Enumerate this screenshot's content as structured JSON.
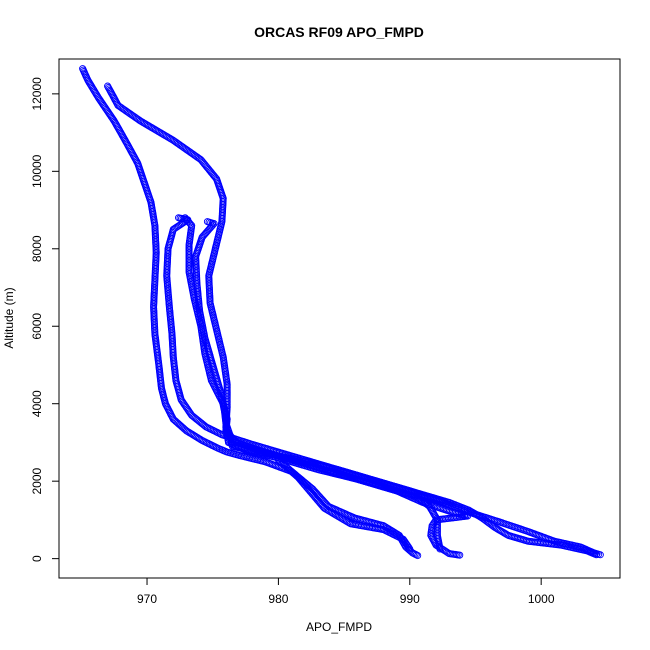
{
  "chart_data": {
    "type": "scatter",
    "title": "ORCAS RF09 APO_FMPD",
    "xlabel": "APO_FMPD",
    "ylabel": "Altitude (m)",
    "xlim": [
      963.3,
      1006.0
    ],
    "ylim": [
      -500,
      12900
    ],
    "xticks": [
      970,
      980,
      990,
      1000
    ],
    "yticks": [
      0,
      2000,
      4000,
      6000,
      8000,
      10000,
      12000
    ],
    "grid": false,
    "legend": "none",
    "marker": "open-circle",
    "color": "#0000ff",
    "series": [
      {
        "points": [
          [
            965.1,
            12650
          ],
          [
            965.5,
            12350
          ],
          [
            966.3,
            11900
          ],
          [
            967.5,
            11300
          ],
          [
            968.5,
            10700
          ],
          [
            969.3,
            10200
          ],
          [
            969.8,
            9700
          ],
          [
            970.3,
            9200
          ],
          [
            970.6,
            8600
          ],
          [
            970.7,
            7900
          ],
          [
            970.6,
            7200
          ],
          [
            970.5,
            6500
          ],
          [
            970.6,
            5800
          ],
          [
            970.9,
            5000
          ],
          [
            971.1,
            4400
          ],
          [
            971.4,
            4000
          ],
          [
            972.0,
            3600
          ],
          [
            973.0,
            3300
          ],
          [
            974.2,
            3050
          ],
          [
            975.4,
            2850
          ],
          [
            976.1,
            2750
          ],
          [
            977.2,
            2650
          ],
          [
            979.0,
            2500
          ],
          [
            981.0,
            2250
          ],
          [
            982.6,
            1800
          ],
          [
            983.8,
            1350
          ],
          [
            985.8,
            1050
          ],
          [
            988.0,
            850
          ],
          [
            989.2,
            600
          ],
          [
            989.7,
            300
          ],
          [
            990.2,
            150
          ],
          [
            990.6,
            80
          ]
        ]
      },
      {
        "points": [
          [
            967.0,
            12200
          ],
          [
            967.8,
            11700
          ],
          [
            969.5,
            11300
          ],
          [
            972.0,
            10800
          ],
          [
            974.1,
            10300
          ],
          [
            975.3,
            9800
          ],
          [
            975.8,
            9300
          ],
          [
            975.7,
            8700
          ],
          [
            975.2,
            8000
          ],
          [
            974.7,
            7300
          ],
          [
            974.8,
            6600
          ],
          [
            975.3,
            5900
          ],
          [
            975.8,
            5200
          ],
          [
            976.1,
            4500
          ],
          [
            976.1,
            3900
          ],
          [
            976.0,
            3400
          ],
          [
            976.2,
            3000
          ],
          [
            977.5,
            2800
          ],
          [
            980.0,
            2600
          ],
          [
            983.0,
            2300
          ],
          [
            986.0,
            2050
          ],
          [
            989.0,
            1750
          ],
          [
            991.0,
            1450
          ],
          [
            992.8,
            1250
          ],
          [
            993.8,
            1150
          ],
          [
            994.4,
            1100
          ],
          [
            992.0,
            1000
          ],
          [
            991.7,
            850
          ],
          [
            991.6,
            600
          ],
          [
            992.0,
            350
          ],
          [
            993.0,
            130
          ],
          [
            993.8,
            90
          ]
        ]
      },
      {
        "points": [
          [
            972.4,
            8800
          ],
          [
            973.1,
            8750
          ],
          [
            972.0,
            8500
          ],
          [
            971.6,
            8000
          ],
          [
            971.5,
            7300
          ],
          [
            971.7,
            6500
          ],
          [
            971.9,
            5800
          ],
          [
            972.0,
            5200
          ],
          [
            972.2,
            4600
          ],
          [
            972.6,
            4100
          ],
          [
            973.4,
            3700
          ],
          [
            974.5,
            3400
          ],
          [
            975.7,
            3200
          ],
          [
            978.0,
            2950
          ],
          [
            981.0,
            2650
          ],
          [
            984.0,
            2350
          ],
          [
            987.0,
            2050
          ],
          [
            990.0,
            1750
          ],
          [
            992.6,
            1450
          ],
          [
            994.5,
            1200
          ],
          [
            996.8,
            950
          ],
          [
            999.0,
            700
          ],
          [
            1001.0,
            450
          ],
          [
            1003.0,
            300
          ],
          [
            1004.0,
            150
          ],
          [
            1004.5,
            100
          ]
        ]
      },
      {
        "points": [
          [
            972.9,
            8800
          ],
          [
            973.4,
            8600
          ],
          [
            973.2,
            8100
          ],
          [
            973.2,
            7400
          ],
          [
            973.6,
            6700
          ],
          [
            974.1,
            6000
          ],
          [
            974.4,
            5300
          ],
          [
            974.9,
            4600
          ],
          [
            975.8,
            4000
          ],
          [
            976.1,
            3600
          ],
          [
            976.0,
            3300
          ],
          [
            976.8,
            3000
          ],
          [
            979.0,
            2750
          ],
          [
            982.0,
            2450
          ],
          [
            985.0,
            2150
          ],
          [
            988.0,
            1850
          ],
          [
            990.5,
            1600
          ],
          [
            991.5,
            1350
          ],
          [
            992.1,
            1000
          ],
          [
            992.1,
            600
          ],
          [
            992.3,
            250
          ]
        ]
      },
      {
        "points": [
          [
            974.6,
            8700
          ],
          [
            975.1,
            8650
          ],
          [
            974.2,
            8300
          ],
          [
            973.7,
            7800
          ],
          [
            973.8,
            7100
          ],
          [
            974.0,
            6400
          ],
          [
            974.4,
            5700
          ],
          [
            975.0,
            5000
          ],
          [
            975.6,
            4300
          ],
          [
            975.9,
            3800
          ],
          [
            976.0,
            3500
          ],
          [
            976.3,
            3200
          ],
          [
            976.5,
            2900
          ],
          [
            978.5,
            2750
          ],
          [
            981.5,
            2550
          ],
          [
            984.5,
            2300
          ],
          [
            987.5,
            2000
          ],
          [
            990.5,
            1700
          ],
          [
            993.0,
            1450
          ],
          [
            994.5,
            1250
          ],
          [
            995.5,
            1050
          ],
          [
            996.5,
            800
          ],
          [
            997.5,
            600
          ],
          [
            999.0,
            450
          ],
          [
            1001.5,
            350
          ],
          [
            1003.5,
            200
          ],
          [
            1004.2,
            100
          ]
        ]
      },
      {
        "points": [
          [
            980.0,
            2550
          ],
          [
            981.5,
            2100
          ],
          [
            982.5,
            1700
          ],
          [
            983.5,
            1300
          ],
          [
            985.5,
            900
          ],
          [
            988.0,
            750
          ],
          [
            989.5,
            500
          ],
          [
            990.0,
            250
          ]
        ]
      }
    ]
  }
}
